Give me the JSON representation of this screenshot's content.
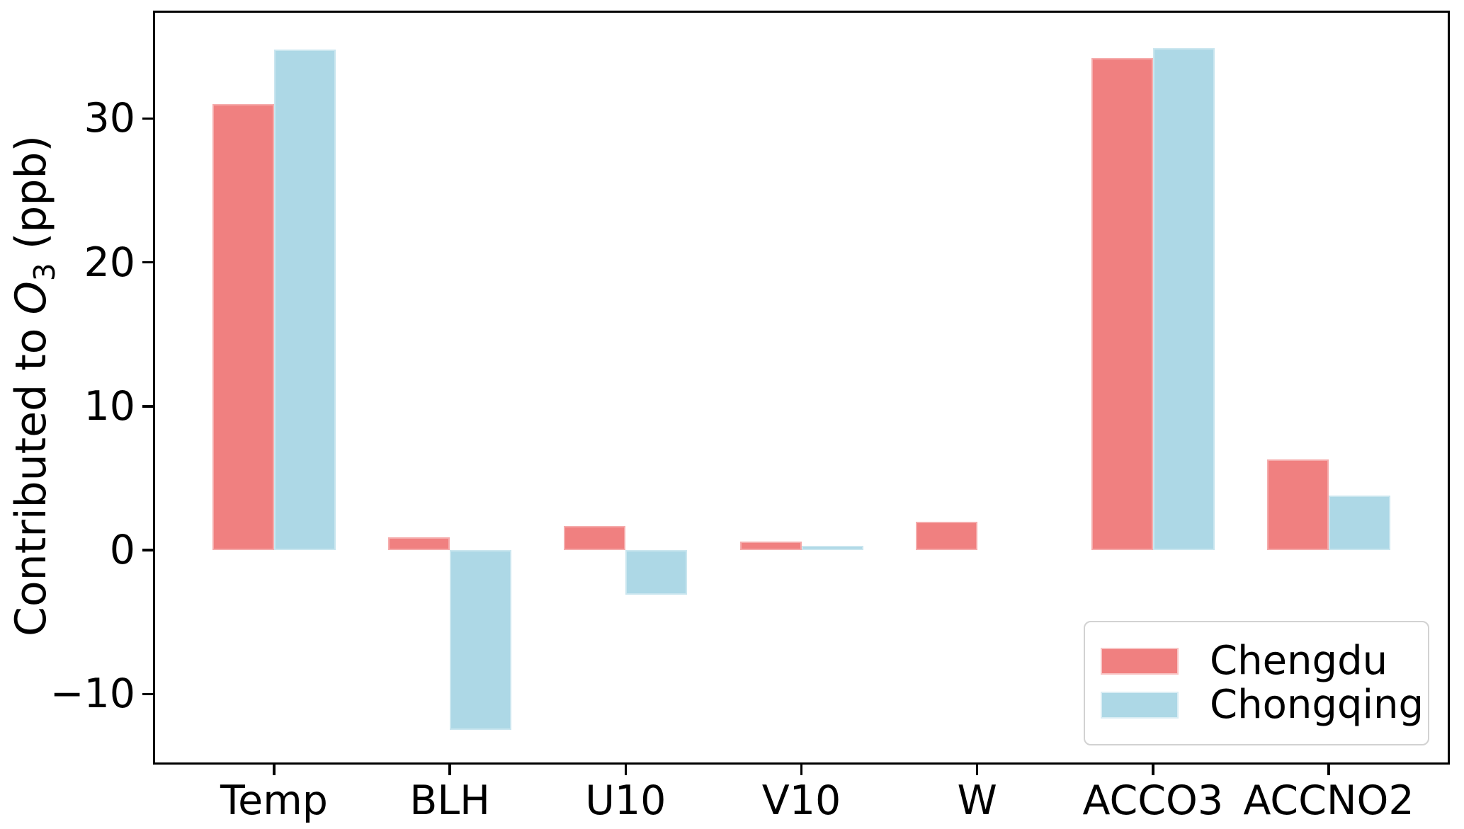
{
  "figure": {
    "ylabel": {
      "prefix": "Contributed to ",
      "symbol": "O",
      "subscript": "3",
      "suffix": " (ppb)"
    }
  },
  "legend": {
    "position": "lower right",
    "items": [
      {
        "label": "Chengdu",
        "color": "#F08080"
      },
      {
        "label": "Chongqing",
        "color": "#ADD8E6"
      }
    ]
  },
  "chart_data": {
    "type": "bar",
    "title": "",
    "xlabel": "",
    "ylabel": "Contributed to O_3 (ppb)",
    "categories": [
      "Temp",
      "BLH",
      "U10",
      "V10",
      "W",
      "ACCO3",
      "ACCNO2"
    ],
    "series": [
      {
        "name": "Chengdu",
        "color": "#F08080",
        "values": [
          31.0,
          0.9,
          1.7,
          0.6,
          2.0,
          34.2,
          6.3
        ]
      },
      {
        "name": "Chongqing",
        "color": "#ADD8E6",
        "values": [
          34.8,
          -12.5,
          -3.1,
          0.3,
          0.0,
          34.9,
          3.8
        ]
      }
    ],
    "ylim": [
      -14.9,
      37.5
    ],
    "yticks": [
      -10,
      0,
      10,
      20,
      30
    ],
    "bar_width_per_series": 0.35,
    "grid": false,
    "legend_position": "lower right",
    "frame": "full-box"
  }
}
